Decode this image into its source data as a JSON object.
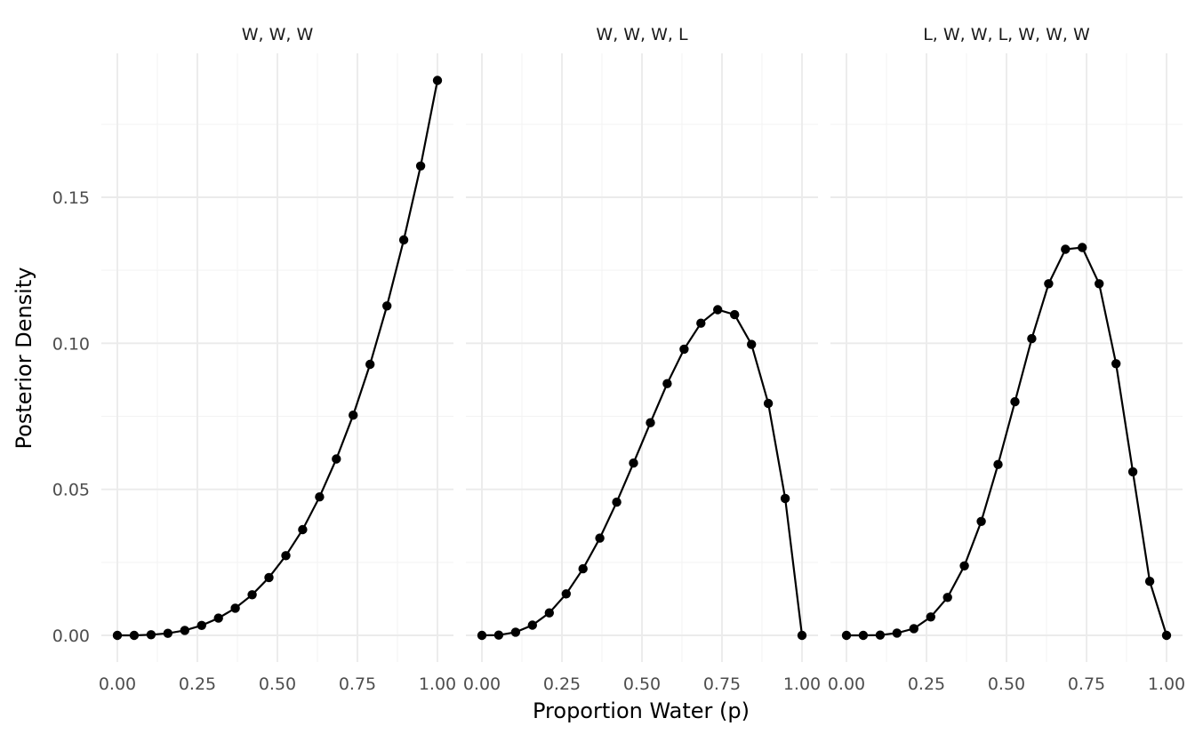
{
  "chart_data": {
    "type": "line",
    "markers": true,
    "xlabel": "Proportion Water (p)",
    "ylabel": "Posterior Density",
    "xlim": [
      0,
      1
    ],
    "ylim": [
      0,
      0.19
    ],
    "x_ticks": [
      0,
      0.25,
      0.5,
      0.75,
      1
    ],
    "x_tick_labels": [
      "0.00",
      "0.25",
      "0.50",
      "0.75",
      "1.00"
    ],
    "y_ticks": [
      0,
      0.05,
      0.1,
      0.15
    ],
    "y_tick_labels": [
      "0.00",
      "0.05",
      "0.10",
      "0.15"
    ],
    "x": [
      0,
      0.0526,
      0.1053,
      0.1579,
      0.2105,
      0.2632,
      0.3158,
      0.3684,
      0.4211,
      0.4737,
      0.5263,
      0.5789,
      0.6316,
      0.6842,
      0.7368,
      0.7895,
      0.8421,
      0.8947,
      0.9474,
      1
    ],
    "panels": [
      {
        "title": "W, W, W",
        "values": [
          0,
          0.0,
          0.0002,
          0.0007,
          0.0017,
          0.0034,
          0.0059,
          0.0093,
          0.0139,
          0.0198,
          0.0273,
          0.0362,
          0.0474,
          0.0604,
          0.0754,
          0.0928,
          0.1128,
          0.1354,
          0.1607,
          0.19
        ]
      },
      {
        "title": "W, W, W, L",
        "values": [
          0,
          0.0001,
          0.0011,
          0.0035,
          0.0077,
          0.0142,
          0.0228,
          0.0333,
          0.0456,
          0.059,
          0.0728,
          0.0862,
          0.098,
          0.1069,
          0.1115,
          0.1098,
          0.0996,
          0.0794,
          0.0469,
          0
        ]
      },
      {
        "title": "L, W, W, L, W, W, W",
        "values": [
          0,
          0.0,
          0.0001,
          0.0008,
          0.0023,
          0.0063,
          0.013,
          0.0238,
          0.039,
          0.0585,
          0.08,
          0.1016,
          0.1204,
          0.1322,
          0.1328,
          0.1204,
          0.093,
          0.056,
          0.0185,
          0
        ]
      }
    ]
  }
}
